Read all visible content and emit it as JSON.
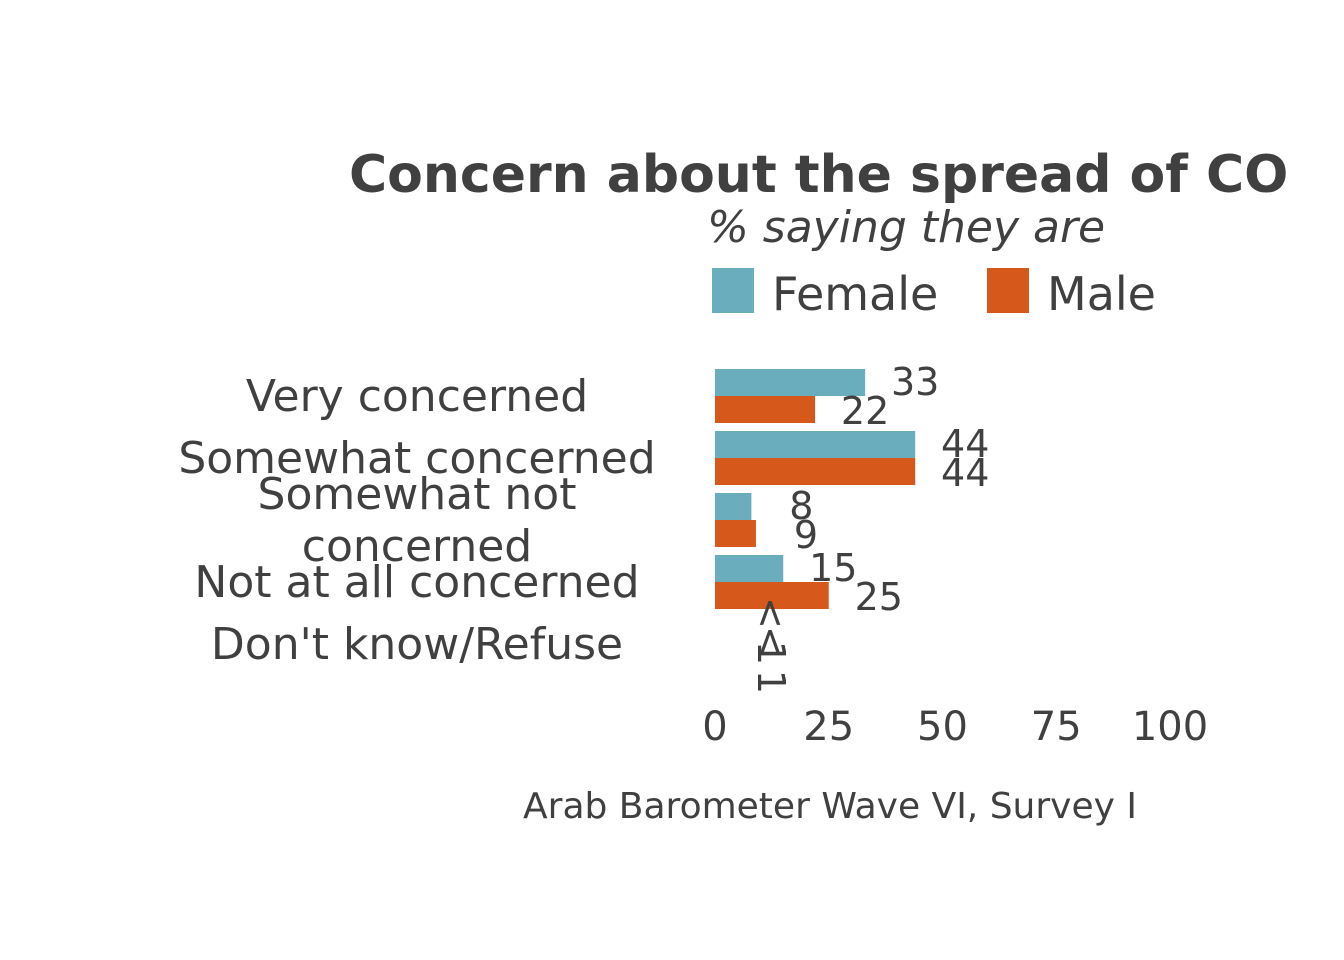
{
  "chart_data": {
    "type": "bar",
    "orientation": "horizontal",
    "title": "Concern about the spread of CO",
    "subtitle": "% saying they are",
    "caption": "Arab Barometer Wave VI, Survey I",
    "categories": [
      [
        "Very concerned"
      ],
      [
        "Somewhat concerned"
      ],
      [
        "Somewhat not",
        "concerned"
      ],
      [
        "Not at all concerned"
      ],
      [
        "Don't know/Refuse"
      ]
    ],
    "series": [
      {
        "name": "Female",
        "color": "#6aadbc",
        "values": [
          33,
          44,
          8,
          15,
          0.5
        ],
        "labels": [
          "33",
          "44",
          "8",
          "15",
          "< 1"
        ]
      },
      {
        "name": "Male",
        "color": "#d6591b",
        "values": [
          22,
          44,
          9,
          25,
          0.5
        ],
        "labels": [
          "22",
          "44",
          "9",
          "25",
          "< 1"
        ]
      }
    ],
    "xlim": [
      0,
      100
    ],
    "xticks": [
      "0",
      "25",
      "50",
      "75",
      "100"
    ],
    "xtick_values": [
      0,
      25,
      50,
      75,
      100
    ],
    "legend_position": "top",
    "grid": false
  }
}
